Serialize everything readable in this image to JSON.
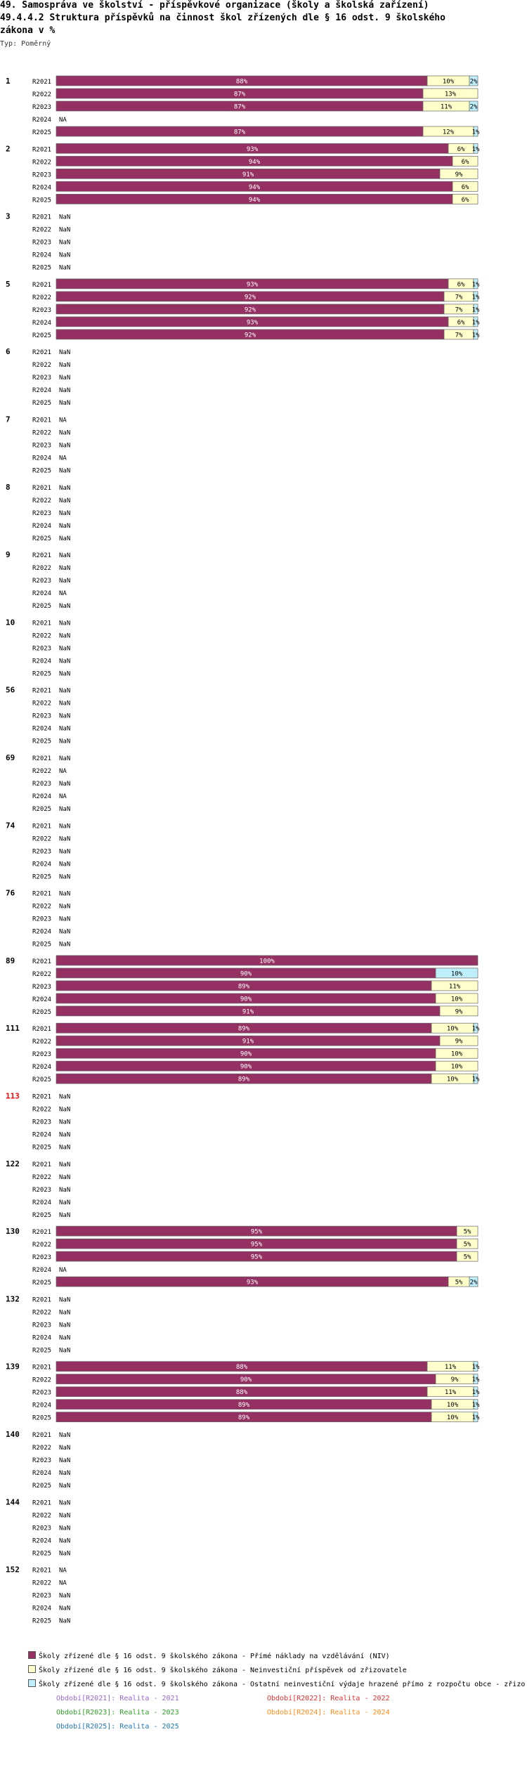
{
  "header": {
    "line1": "49. Samospráva ve školství - příspěvkové organizace (školy a školská zařízení)",
    "line2": "49.4.4.2 Struktura příspěvků na činnost škol zřízených dle § 16 odst. 9 školského",
    "line3": " zákona v %",
    "type_label": "Typ: Poměrný"
  },
  "colors": {
    "niv": "#943062",
    "invest": "#ffffcc",
    "other": "#bfeffa",
    "red_group": "#ff0000"
  },
  "chart_data": {
    "type": "bar",
    "orientation": "horizontal-stacked-100",
    "years": [
      "R2021",
      "R2022",
      "R2023",
      "R2024",
      "R2025"
    ],
    "series_names": [
      "Školy zřízené dle § 16 odst. 9 školského zákona - Přímé náklady na vzdělávání (NIV)",
      "Školy zřízené dle § 16 odst. 9 školského zákona  - Neinvestiční příspěvek od zřizovatele",
      "Školy zřízené dle § 16 odst. 9 školského zákona - Ostatní neinvestiční výdaje hrazené přímo z rozpočtu obce - zřizo"
    ],
    "groups": [
      {
        "label": "1",
        "rows": [
          {
            "year": "R2021",
            "values": [
              88,
              10,
              2
            ],
            "labels": [
              "88%",
              "10%",
              "2%"
            ]
          },
          {
            "year": "R2022",
            "values": [
              87,
              13,
              0
            ],
            "labels": [
              "87%",
              "13%",
              ""
            ]
          },
          {
            "year": "R2023",
            "values": [
              87,
              11,
              2
            ],
            "labels": [
              "87%",
              "11%",
              "2%"
            ]
          },
          {
            "year": "R2024",
            "na": "NA"
          },
          {
            "year": "R2025",
            "values": [
              87,
              12,
              1
            ],
            "labels": [
              "87%",
              "12%",
              "1%"
            ]
          }
        ]
      },
      {
        "label": "2",
        "rows": [
          {
            "year": "R2021",
            "values": [
              93,
              6,
              1
            ],
            "labels": [
              "93%",
              "6%",
              "1%"
            ]
          },
          {
            "year": "R2022",
            "values": [
              94,
              6,
              0
            ],
            "labels": [
              "94%",
              "6%",
              ""
            ]
          },
          {
            "year": "R2023",
            "values": [
              91,
              9,
              0
            ],
            "labels": [
              "91%",
              "9%",
              ""
            ]
          },
          {
            "year": "R2024",
            "values": [
              94,
              6,
              0
            ],
            "labels": [
              "94%",
              "6%",
              ""
            ]
          },
          {
            "year": "R2025",
            "values": [
              94,
              6,
              0
            ],
            "labels": [
              "94%",
              "6%",
              ""
            ]
          }
        ]
      },
      {
        "label": "3",
        "rows": [
          {
            "year": "R2021",
            "na": "NaN"
          },
          {
            "year": "R2022",
            "na": "NaN"
          },
          {
            "year": "R2023",
            "na": "NaN"
          },
          {
            "year": "R2024",
            "na": "NaN"
          },
          {
            "year": "R2025",
            "na": "NaN"
          }
        ]
      },
      {
        "label": "5",
        "rows": [
          {
            "year": "R2021",
            "values": [
              93,
              6,
              1
            ],
            "labels": [
              "93%",
              "6%",
              "1%"
            ]
          },
          {
            "year": "R2022",
            "values": [
              92,
              7,
              1
            ],
            "labels": [
              "92%",
              "7%",
              "1%"
            ]
          },
          {
            "year": "R2023",
            "values": [
              92,
              7,
              1
            ],
            "labels": [
              "92%",
              "7%",
              "1%"
            ]
          },
          {
            "year": "R2024",
            "values": [
              93,
              6,
              1
            ],
            "labels": [
              "93%",
              "6%",
              "1%"
            ]
          },
          {
            "year": "R2025",
            "values": [
              92,
              7,
              1
            ],
            "labels": [
              "92%",
              "7%",
              "1%"
            ]
          }
        ]
      },
      {
        "label": "6",
        "rows": [
          {
            "year": "R2021",
            "na": "NaN"
          },
          {
            "year": "R2022",
            "na": "NaN"
          },
          {
            "year": "R2023",
            "na": "NaN"
          },
          {
            "year": "R2024",
            "na": "NaN"
          },
          {
            "year": "R2025",
            "na": "NaN"
          }
        ]
      },
      {
        "label": "7",
        "rows": [
          {
            "year": "R2021",
            "na": "NA"
          },
          {
            "year": "R2022",
            "na": "NaN"
          },
          {
            "year": "R2023",
            "na": "NaN"
          },
          {
            "year": "R2024",
            "na": "NA"
          },
          {
            "year": "R2025",
            "na": "NaN"
          }
        ]
      },
      {
        "label": "8",
        "rows": [
          {
            "year": "R2021",
            "na": "NaN"
          },
          {
            "year": "R2022",
            "na": "NaN"
          },
          {
            "year": "R2023",
            "na": "NaN"
          },
          {
            "year": "R2024",
            "na": "NaN"
          },
          {
            "year": "R2025",
            "na": "NaN"
          }
        ]
      },
      {
        "label": "9",
        "rows": [
          {
            "year": "R2021",
            "na": "NaN"
          },
          {
            "year": "R2022",
            "na": "NaN"
          },
          {
            "year": "R2023",
            "na": "NaN"
          },
          {
            "year": "R2024",
            "na": "NA"
          },
          {
            "year": "R2025",
            "na": "NaN"
          }
        ]
      },
      {
        "label": "10",
        "rows": [
          {
            "year": "R2021",
            "na": "NaN"
          },
          {
            "year": "R2022",
            "na": "NaN"
          },
          {
            "year": "R2023",
            "na": "NaN"
          },
          {
            "year": "R2024",
            "na": "NaN"
          },
          {
            "year": "R2025",
            "na": "NaN"
          }
        ]
      },
      {
        "label": "56",
        "rows": [
          {
            "year": "R2021",
            "na": "NaN"
          },
          {
            "year": "R2022",
            "na": "NaN"
          },
          {
            "year": "R2023",
            "na": "NaN"
          },
          {
            "year": "R2024",
            "na": "NaN"
          },
          {
            "year": "R2025",
            "na": "NaN"
          }
        ]
      },
      {
        "label": "69",
        "rows": [
          {
            "year": "R2021",
            "na": "NaN"
          },
          {
            "year": "R2022",
            "na": "NA"
          },
          {
            "year": "R2023",
            "na": "NaN"
          },
          {
            "year": "R2024",
            "na": "NA"
          },
          {
            "year": "R2025",
            "na": "NaN"
          }
        ]
      },
      {
        "label": "74",
        "rows": [
          {
            "year": "R2021",
            "na": "NaN"
          },
          {
            "year": "R2022",
            "na": "NaN"
          },
          {
            "year": "R2023",
            "na": "NaN"
          },
          {
            "year": "R2024",
            "na": "NaN"
          },
          {
            "year": "R2025",
            "na": "NaN"
          }
        ]
      },
      {
        "label": "76",
        "rows": [
          {
            "year": "R2021",
            "na": "NaN"
          },
          {
            "year": "R2022",
            "na": "NaN"
          },
          {
            "year": "R2023",
            "na": "NaN"
          },
          {
            "year": "R2024",
            "na": "NaN"
          },
          {
            "year": "R2025",
            "na": "NaN"
          }
        ]
      },
      {
        "label": "89",
        "rows": [
          {
            "year": "R2021",
            "values": [
              100,
              0,
              0
            ],
            "labels": [
              "100%",
              "",
              ""
            ]
          },
          {
            "year": "R2022",
            "values": [
              90,
              0,
              10
            ],
            "labels": [
              "90%",
              "",
              "10%"
            ]
          },
          {
            "year": "R2023",
            "values": [
              89,
              11,
              0
            ],
            "labels": [
              "89%",
              "11%",
              ""
            ]
          },
          {
            "year": "R2024",
            "values": [
              90,
              10,
              0
            ],
            "labels": [
              "90%",
              "10%",
              ""
            ]
          },
          {
            "year": "R2025",
            "values": [
              91,
              9,
              0
            ],
            "labels": [
              "91%",
              "9%",
              ""
            ]
          }
        ]
      },
      {
        "label": "111",
        "rows": [
          {
            "year": "R2021",
            "values": [
              89,
              10,
              1
            ],
            "labels": [
              "89%",
              "10%",
              "1%"
            ]
          },
          {
            "year": "R2022",
            "values": [
              91,
              9,
              0
            ],
            "labels": [
              "91%",
              "9%",
              ""
            ]
          },
          {
            "year": "R2023",
            "values": [
              90,
              10,
              0
            ],
            "labels": [
              "90%",
              "10%",
              ""
            ]
          },
          {
            "year": "R2024",
            "values": [
              90,
              10,
              0
            ],
            "labels": [
              "90%",
              "10%",
              ""
            ]
          },
          {
            "year": "R2025",
            "values": [
              89,
              10,
              1
            ],
            "labels": [
              "89%",
              "10%",
              "1%"
            ]
          }
        ]
      },
      {
        "label": "113",
        "red": true,
        "rows": [
          {
            "year": "R2021",
            "na": "NaN"
          },
          {
            "year": "R2022",
            "na": "NaN"
          },
          {
            "year": "R2023",
            "na": "NaN"
          },
          {
            "year": "R2024",
            "na": "NaN"
          },
          {
            "year": "R2025",
            "na": "NaN"
          }
        ]
      },
      {
        "label": "122",
        "rows": [
          {
            "year": "R2021",
            "na": "NaN"
          },
          {
            "year": "R2022",
            "na": "NaN"
          },
          {
            "year": "R2023",
            "na": "NaN"
          },
          {
            "year": "R2024",
            "na": "NaN"
          },
          {
            "year": "R2025",
            "na": "NaN"
          }
        ]
      },
      {
        "label": "130",
        "rows": [
          {
            "year": "R2021",
            "values": [
              95,
              5,
              0
            ],
            "labels": [
              "95%",
              "5%",
              ""
            ]
          },
          {
            "year": "R2022",
            "values": [
              95,
              5,
              0
            ],
            "labels": [
              "95%",
              "5%",
              ""
            ]
          },
          {
            "year": "R2023",
            "values": [
              95,
              5,
              0
            ],
            "labels": [
              "95%",
              "5%",
              ""
            ]
          },
          {
            "year": "R2024",
            "na": "NA"
          },
          {
            "year": "R2025",
            "values": [
              93,
              5,
              2
            ],
            "labels": [
              "93%",
              "5%",
              "2%"
            ]
          }
        ]
      },
      {
        "label": "132",
        "rows": [
          {
            "year": "R2021",
            "na": "NaN"
          },
          {
            "year": "R2022",
            "na": "NaN"
          },
          {
            "year": "R2023",
            "na": "NaN"
          },
          {
            "year": "R2024",
            "na": "NaN"
          },
          {
            "year": "R2025",
            "na": "NaN"
          }
        ]
      },
      {
        "label": "139",
        "rows": [
          {
            "year": "R2021",
            "values": [
              88,
              11,
              1
            ],
            "labels": [
              "88%",
              "11%",
              "1%"
            ]
          },
          {
            "year": "R2022",
            "values": [
              90,
              9,
              1
            ],
            "labels": [
              "90%",
              "9%",
              "1%"
            ]
          },
          {
            "year": "R2023",
            "values": [
              88,
              11,
              1
            ],
            "labels": [
              "88%",
              "11%",
              "1%"
            ]
          },
          {
            "year": "R2024",
            "values": [
              89,
              10,
              1
            ],
            "labels": [
              "89%",
              "10%",
              "1%"
            ]
          },
          {
            "year": "R2025",
            "values": [
              89,
              10,
              1
            ],
            "labels": [
              "89%",
              "10%",
              "1%"
            ]
          }
        ]
      },
      {
        "label": "140",
        "rows": [
          {
            "year": "R2021",
            "na": "NaN"
          },
          {
            "year": "R2022",
            "na": "NaN"
          },
          {
            "year": "R2023",
            "na": "NaN"
          },
          {
            "year": "R2024",
            "na": "NaN"
          },
          {
            "year": "R2025",
            "na": "NaN"
          }
        ]
      },
      {
        "label": "144",
        "rows": [
          {
            "year": "R2021",
            "na": "NaN"
          },
          {
            "year": "R2022",
            "na": "NaN"
          },
          {
            "year": "R2023",
            "na": "NaN"
          },
          {
            "year": "R2024",
            "na": "NaN"
          },
          {
            "year": "R2025",
            "na": "NaN"
          }
        ]
      },
      {
        "label": "152",
        "rows": [
          {
            "year": "R2021",
            "na": "NA"
          },
          {
            "year": "R2022",
            "na": "NA"
          },
          {
            "year": "R2023",
            "na": "NaN"
          },
          {
            "year": "R2024",
            "na": "NaN"
          },
          {
            "year": "R2025",
            "na": "NaN"
          }
        ]
      }
    ]
  },
  "periods": [
    {
      "text": "Období[R2021]: Realita - 2021",
      "color": "#9966cc"
    },
    {
      "text": "Období[R2022]: Realita - 2022",
      "color": "#e03030"
    },
    {
      "text": "Období[R2023]: Realita - 2023",
      "color": "#33a02c"
    },
    {
      "text": "Období[R2024]: Realita - 2024",
      "color": "#ff8c1a"
    },
    {
      "text": "Období[R2025]: Realita - 2025",
      "color": "#1f78b4"
    }
  ]
}
